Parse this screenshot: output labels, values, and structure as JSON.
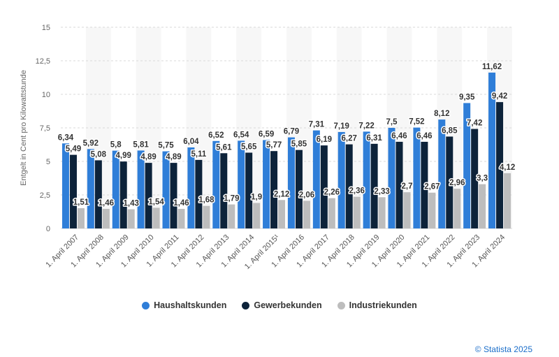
{
  "chart_data": {
    "type": "bar",
    "ylabel": "Entgelt in Cent pro Kilowattstunde",
    "ylim": [
      0,
      15
    ],
    "yticks": [
      "0",
      "2,5",
      "5",
      "7,5",
      "10",
      "12,5",
      "15"
    ],
    "grid": true,
    "legend_position": "bottom",
    "categories": [
      "1. April 2007",
      "1. April 2008",
      "1. April 2009",
      "1. April 2010",
      "1. April 2011",
      "1. April 2012",
      "1. April 2013",
      "1. April 2014",
      "1. April 2015¹",
      "1. April 2016",
      "1. April 2017",
      "1. April 2018",
      "1. April 2019",
      "1. April 2020",
      "1. April 2021",
      "1. April 2022",
      "1. April 2023",
      "1. April 2024"
    ],
    "series": [
      {
        "name": "Haushaltskunden",
        "color": "#2f7ed8",
        "values": [
          6.34,
          5.92,
          5.8,
          5.81,
          5.75,
          6.04,
          6.52,
          6.54,
          6.59,
          6.79,
          7.31,
          7.19,
          7.22,
          7.5,
          7.52,
          8.12,
          9.35,
          11.62
        ],
        "labels": [
          "6,34",
          "5,92",
          "5,8",
          "5,81",
          "5,75",
          "6,04",
          "6,52",
          "6,54",
          "6,59",
          "6,79",
          "7,31",
          "7,19",
          "7,22",
          "7,5",
          "7,52",
          "8,12",
          "9,35",
          "11,62"
        ]
      },
      {
        "name": "Gewerbekunden",
        "color": "#0d233a",
        "values": [
          5.49,
          5.08,
          4.99,
          4.89,
          4.89,
          5.11,
          5.61,
          5.65,
          5.77,
          5.85,
          6.19,
          6.27,
          6.31,
          6.46,
          6.46,
          6.85,
          7.42,
          9.42
        ],
        "labels": [
          "5,49",
          "5,08",
          "4,99",
          "4,89",
          "4,89",
          "5,11",
          "5,61",
          "5,65",
          "5,77",
          "5,85",
          "6,19",
          "6,27",
          "6,31",
          "6,46",
          "6,46",
          "6,85",
          "7,42",
          "9,42"
        ]
      },
      {
        "name": "Industriekunden",
        "color": "#bdbdbd",
        "values": [
          1.51,
          1.46,
          1.43,
          1.54,
          1.46,
          1.68,
          1.79,
          1.9,
          2.12,
          2.06,
          2.26,
          2.36,
          2.33,
          2.7,
          2.67,
          2.96,
          3.3,
          4.12
        ],
        "labels": [
          "1,51",
          "1,46",
          "1,43",
          "1,54",
          "1,46",
          "1,68",
          "1,79",
          "1,9",
          "2,12",
          "2,06",
          "2,26",
          "2,36",
          "2,33",
          "2,7",
          "2,67",
          "2,96",
          "3,3",
          "4,12"
        ]
      }
    ]
  },
  "credit": "© Statista 2025"
}
